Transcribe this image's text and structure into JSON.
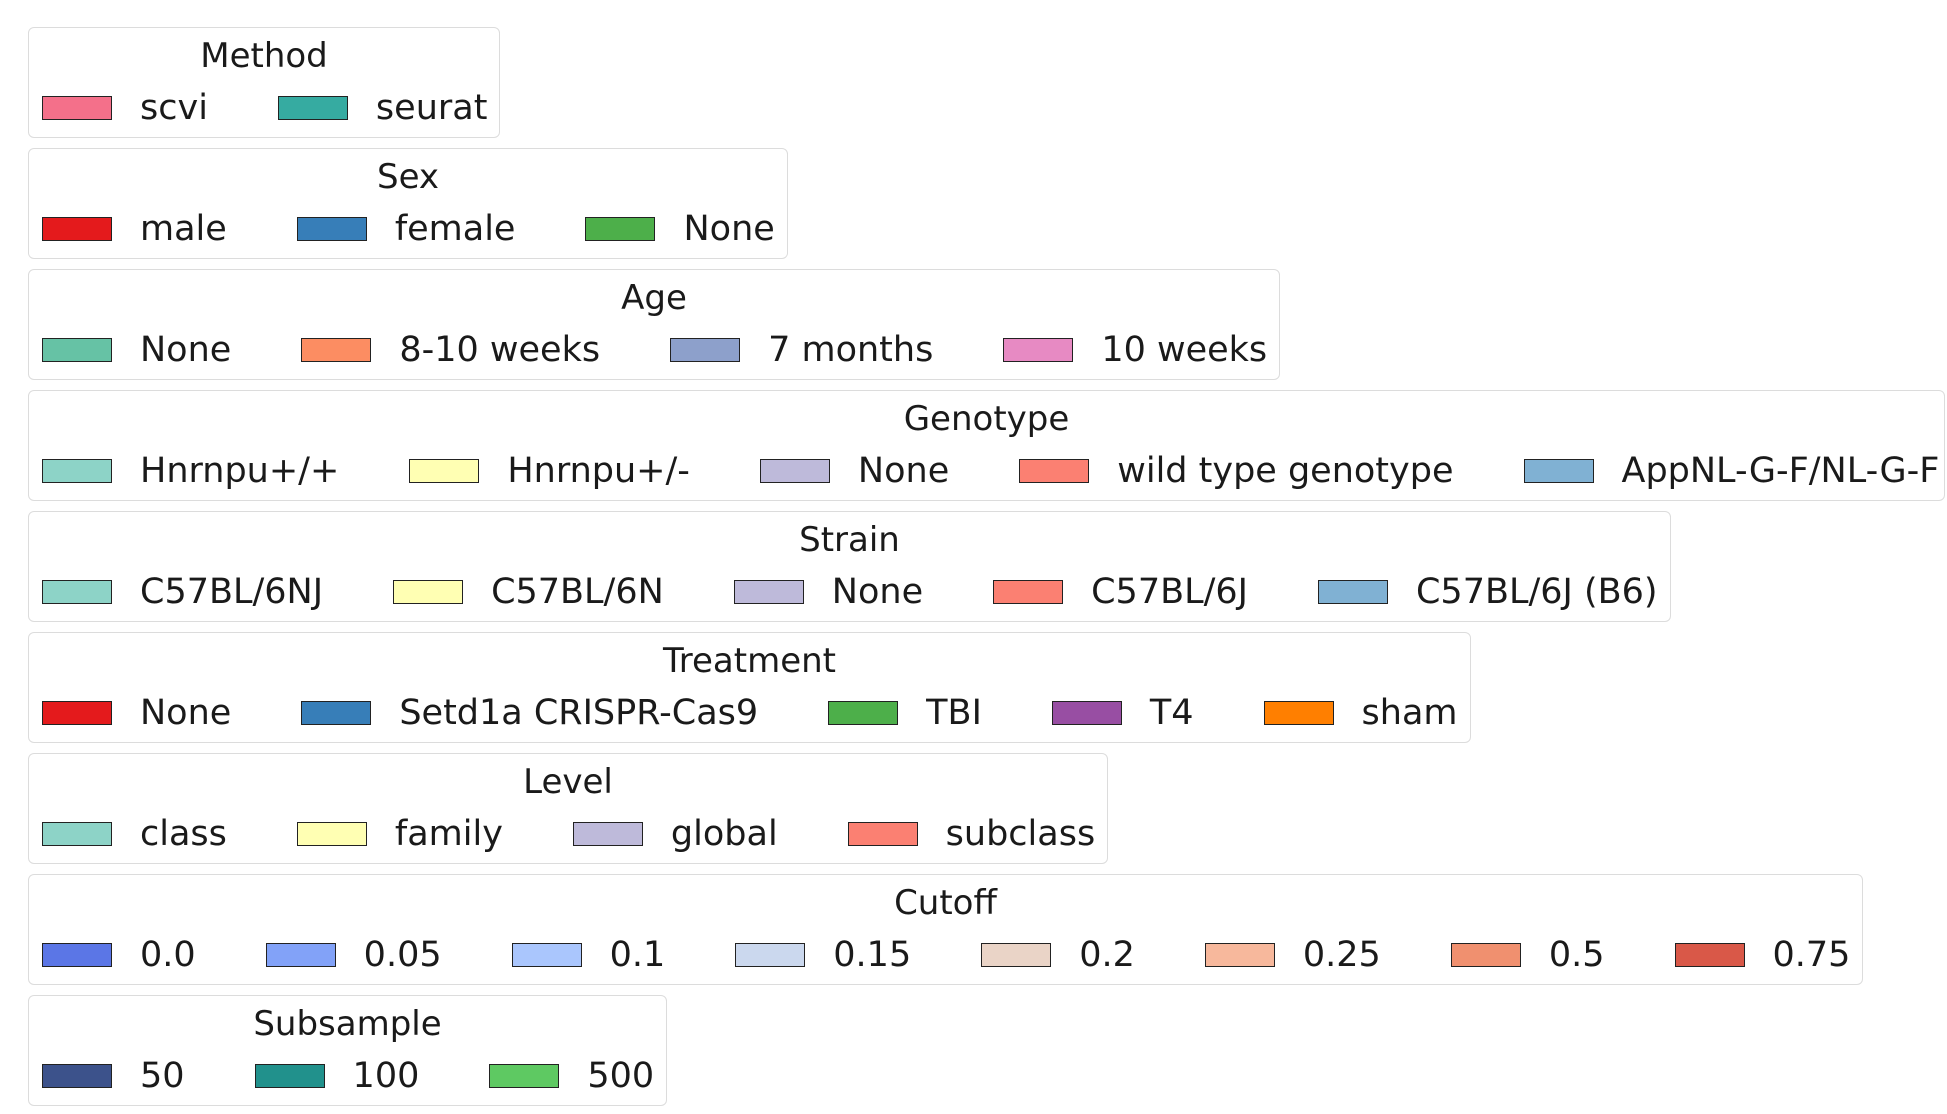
{
  "chart_data": {
    "type": "legend",
    "legends": [
      {
        "title": "Method",
        "entries": [
          {
            "label": "scvi",
            "color": "#f4708a"
          },
          {
            "label": "seurat",
            "color": "#36aba1"
          }
        ]
      },
      {
        "title": "Sex",
        "entries": [
          {
            "label": "male",
            "color": "#e41a1c"
          },
          {
            "label": "female",
            "color": "#377eb8"
          },
          {
            "label": "None",
            "color": "#4daf4a"
          }
        ]
      },
      {
        "title": "Age",
        "entries": [
          {
            "label": "None",
            "color": "#66c2a5"
          },
          {
            "label": "8-10 weeks",
            "color": "#fc8d62"
          },
          {
            "label": "7 months",
            "color": "#8da0cb"
          },
          {
            "label": "10 weeks",
            "color": "#e78ac3"
          }
        ]
      },
      {
        "title": "Genotype",
        "entries": [
          {
            "label": "Hnrnpu+/+",
            "color": "#8dd3c7"
          },
          {
            "label": "Hnrnpu+/-",
            "color": "#ffffb3"
          },
          {
            "label": "None",
            "color": "#bebada"
          },
          {
            "label": "wild type genotype",
            "color": "#fb8072"
          },
          {
            "label": "AppNL-G-F/NL-G-F",
            "color": "#80b1d3"
          }
        ]
      },
      {
        "title": "Strain",
        "entries": [
          {
            "label": "C57BL/6NJ",
            "color": "#8dd3c7"
          },
          {
            "label": "C57BL/6N",
            "color": "#ffffb3"
          },
          {
            "label": "None",
            "color": "#bebada"
          },
          {
            "label": "C57BL/6J",
            "color": "#fb8072"
          },
          {
            "label": "C57BL/6J (B6)",
            "color": "#80b1d3"
          }
        ]
      },
      {
        "title": "Treatment",
        "entries": [
          {
            "label": "None",
            "color": "#e41a1c"
          },
          {
            "label": "Setd1a CRISPR-Cas9",
            "color": "#377eb8"
          },
          {
            "label": "TBI",
            "color": "#4daf4a"
          },
          {
            "label": "T4",
            "color": "#984ea3"
          },
          {
            "label": "sham",
            "color": "#ff7f00"
          }
        ]
      },
      {
        "title": "Level",
        "entries": [
          {
            "label": "class",
            "color": "#8dd3c7"
          },
          {
            "label": "family",
            "color": "#ffffb3"
          },
          {
            "label": "global",
            "color": "#bebada"
          },
          {
            "label": "subclass",
            "color": "#fb8072"
          }
        ]
      },
      {
        "title": "Cutoff",
        "entries": [
          {
            "label": "0.0",
            "color": "#5b76e6"
          },
          {
            "label": "0.05",
            "color": "#82a2f8"
          },
          {
            "label": "0.1",
            "color": "#aac6fd"
          },
          {
            "label": "0.15",
            "color": "#cbd8ee"
          },
          {
            "label": "0.2",
            "color": "#ead4c7"
          },
          {
            "label": "0.25",
            "color": "#f7b89c"
          },
          {
            "label": "0.5",
            "color": "#f0906f"
          },
          {
            "label": "0.75",
            "color": "#d95848"
          }
        ]
      },
      {
        "title": "Subsample",
        "entries": [
          {
            "label": "50",
            "color": "#3c528b"
          },
          {
            "label": "100",
            "color": "#21918c"
          },
          {
            "label": "500",
            "color": "#5ec962"
          }
        ]
      }
    ]
  }
}
